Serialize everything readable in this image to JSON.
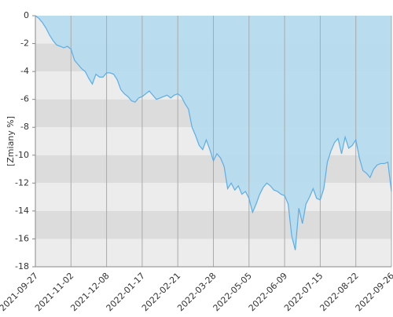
{
  "chart_data": {
    "type": "area",
    "y_label": "[Zmiany %]",
    "categories": [
      "2021-09-27",
      null,
      null,
      null,
      null,
      null,
      null,
      null,
      null,
      null,
      "2021-11-02",
      null,
      null,
      null,
      null,
      null,
      null,
      null,
      null,
      null,
      "2021-12-08",
      null,
      null,
      null,
      null,
      null,
      null,
      null,
      null,
      null,
      "2022-01-17",
      null,
      null,
      null,
      null,
      null,
      null,
      null,
      null,
      null,
      "2022-02-21",
      null,
      null,
      null,
      null,
      null,
      null,
      null,
      null,
      null,
      "2022-03-28",
      null,
      null,
      null,
      null,
      null,
      null,
      null,
      null,
      null,
      "2022-05-05",
      null,
      null,
      null,
      null,
      null,
      null,
      null,
      null,
      null,
      "2022-06-09",
      null,
      null,
      null,
      null,
      null,
      null,
      null,
      null,
      null,
      "2022-07-15",
      null,
      null,
      null,
      null,
      null,
      null,
      null,
      null,
      null,
      "2022-08-22",
      null,
      null,
      null,
      null,
      null,
      null,
      null,
      null,
      null,
      "2022-09-26"
    ],
    "series": [
      {
        "color": "#5aaee8",
        "area_color": "#b4dcee",
        "values": [
          0,
          -0.2,
          -0.5,
          -0.9,
          -1.4,
          -1.8,
          -2.1,
          -2.2,
          -2.3,
          -2.2,
          -2.4,
          -3.2,
          -3.5,
          -3.8,
          -4.0,
          -4.5,
          -4.9,
          -4.2,
          -4.4,
          -4.4,
          -4.1,
          -4.1,
          -4.2,
          -4.6,
          -5.3,
          -5.6,
          -5.8,
          -6.1,
          -6.2,
          -5.9,
          -5.8,
          -5.6,
          -5.4,
          -5.7,
          -6.0,
          -5.9,
          -5.8,
          -5.7,
          -5.9,
          -5.7,
          -5.6,
          -5.8,
          -6.3,
          -6.7,
          -8.0,
          -8.6,
          -9.3,
          -9.6,
          -8.9,
          -9.6,
          -10.4,
          -9.9,
          -10.2,
          -10.8,
          -12.4,
          -12.0,
          -12.5,
          -12.2,
          -12.8,
          -12.6,
          -13.1,
          -14.1,
          -13.5,
          -12.8,
          -12.3,
          -12.0,
          -12.2,
          -12.5,
          -12.6,
          -12.8,
          -12.9,
          -13.5,
          -15.8,
          -16.8,
          -13.8,
          -14.9,
          -13.5,
          -13.0,
          -12.4,
          -13.1,
          -13.2,
          -12.4,
          -10.5,
          -9.7,
          -9.1,
          -8.8,
          -9.9,
          -8.7,
          -9.5,
          -9.3,
          -8.9,
          -10.2,
          -11.1,
          -11.3,
          -11.6,
          -11.0,
          -10.7,
          -10.6,
          -10.6,
          -10.5,
          -12.6
        ]
      }
    ],
    "ylim": [
      -18,
      0
    ],
    "yticks": [
      0,
      -2,
      -4,
      -6,
      -8,
      -10,
      -12,
      -14,
      -16,
      -18
    ],
    "grid": true
  }
}
